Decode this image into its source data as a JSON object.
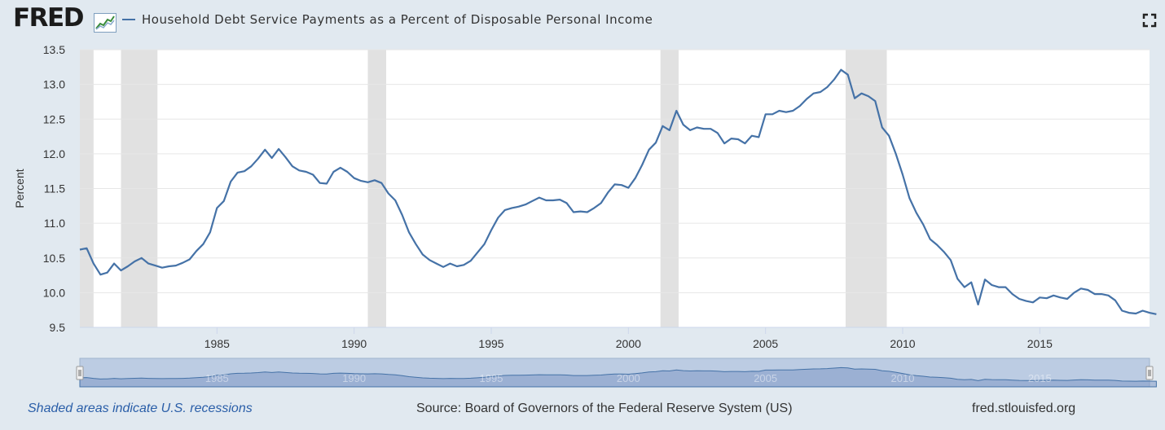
{
  "header": {
    "logo_text": "FRED",
    "title": "Household Debt Service Payments as a Percent of Disposable Personal Income"
  },
  "colors": {
    "background": "#e1e9f0",
    "plot_bg": "#ffffff",
    "series": "#4572a7",
    "recession": "#e1e1e1",
    "navigator": "#bccce3",
    "navigator_area": "#7f99c6",
    "link": "#2a5ea8"
  },
  "icons": {
    "fullscreen": "expand-icon",
    "logo_graph": "line-graph-icon",
    "handle": "grip-icon"
  },
  "footer": {
    "recession_note": "Shaded areas indicate U.S. recessions",
    "source": "Source: Board of Governors of the Federal Reserve System (US)",
    "url": "fred.stlouisfed.org"
  },
  "chart_data": {
    "type": "line",
    "title": "Household Debt Service Payments as a Percent of Disposable Personal Income",
    "xlabel": "",
    "ylabel": "Percent",
    "xlim": [
      1980.0,
      2019.0
    ],
    "ylim": [
      9.5,
      13.5
    ],
    "x_ticks": [
      1985,
      1990,
      1995,
      2000,
      2005,
      2010,
      2015
    ],
    "x_tick_labels": [
      "1985",
      "1990",
      "1995",
      "2000",
      "2005",
      "2010",
      "2015"
    ],
    "y_ticks": [
      9.5,
      10.0,
      10.5,
      11.0,
      11.5,
      12.0,
      12.5,
      13.0,
      13.5
    ],
    "y_tick_labels": [
      "9.5",
      "10.0",
      "10.5",
      "11.0",
      "11.5",
      "12.0",
      "12.5",
      "13.0",
      "13.5"
    ],
    "grid": "horizontal",
    "recessions": [
      [
        1980.0,
        1980.5
      ],
      [
        1981.5,
        1982.83
      ],
      [
        1990.5,
        1991.17
      ],
      [
        2001.17,
        2001.83
      ],
      [
        2007.92,
        2009.42
      ]
    ],
    "series": [
      {
        "name": "Household Debt Service Payments as a Percent of Disposable Personal Income",
        "start": 1980.0,
        "step": 0.25,
        "values": [
          10.62,
          10.64,
          10.42,
          10.26,
          10.29,
          10.42,
          10.32,
          10.38,
          10.45,
          10.5,
          10.42,
          10.39,
          10.36,
          10.38,
          10.39,
          10.43,
          10.48,
          10.6,
          10.7,
          10.87,
          11.22,
          11.32,
          11.6,
          11.73,
          11.75,
          11.82,
          11.93,
          12.06,
          11.94,
          12.07,
          11.95,
          11.82,
          11.76,
          11.74,
          11.7,
          11.58,
          11.57,
          11.74,
          11.8,
          11.74,
          11.65,
          11.61,
          11.59,
          11.62,
          11.58,
          11.43,
          11.33,
          11.12,
          10.87,
          10.7,
          10.55,
          10.47,
          10.42,
          10.37,
          10.42,
          10.38,
          10.4,
          10.46,
          10.58,
          10.7,
          10.9,
          11.08,
          11.19,
          11.22,
          11.24,
          11.27,
          11.32,
          11.37,
          11.33,
          11.33,
          11.34,
          11.29,
          11.16,
          11.17,
          11.16,
          11.22,
          11.29,
          11.44,
          11.56,
          11.55,
          11.51,
          11.65,
          11.84,
          12.06,
          12.16,
          12.4,
          12.34,
          12.62,
          12.42,
          12.34,
          12.38,
          12.36,
          12.36,
          12.3,
          12.15,
          12.22,
          12.21,
          12.15,
          12.26,
          12.24,
          12.57,
          12.57,
          12.62,
          12.6,
          12.62,
          12.69,
          12.79,
          12.87,
          12.89,
          12.96,
          13.07,
          13.21,
          13.14,
          12.8,
          12.87,
          12.83,
          12.76,
          12.38,
          12.26,
          12.0,
          11.7,
          11.36,
          11.15,
          10.98,
          10.77,
          10.69,
          10.59,
          10.47,
          10.2,
          10.08,
          10.15,
          9.83,
          10.19,
          10.11,
          10.08,
          10.08,
          9.98,
          9.91,
          9.88,
          9.86,
          9.93,
          9.92,
          9.96,
          9.93,
          9.91,
          10.0,
          10.06,
          10.04,
          9.98,
          9.98,
          9.96,
          9.89,
          9.74,
          9.71,
          9.7,
          9.74,
          9.71,
          9.69
        ]
      }
    ]
  }
}
